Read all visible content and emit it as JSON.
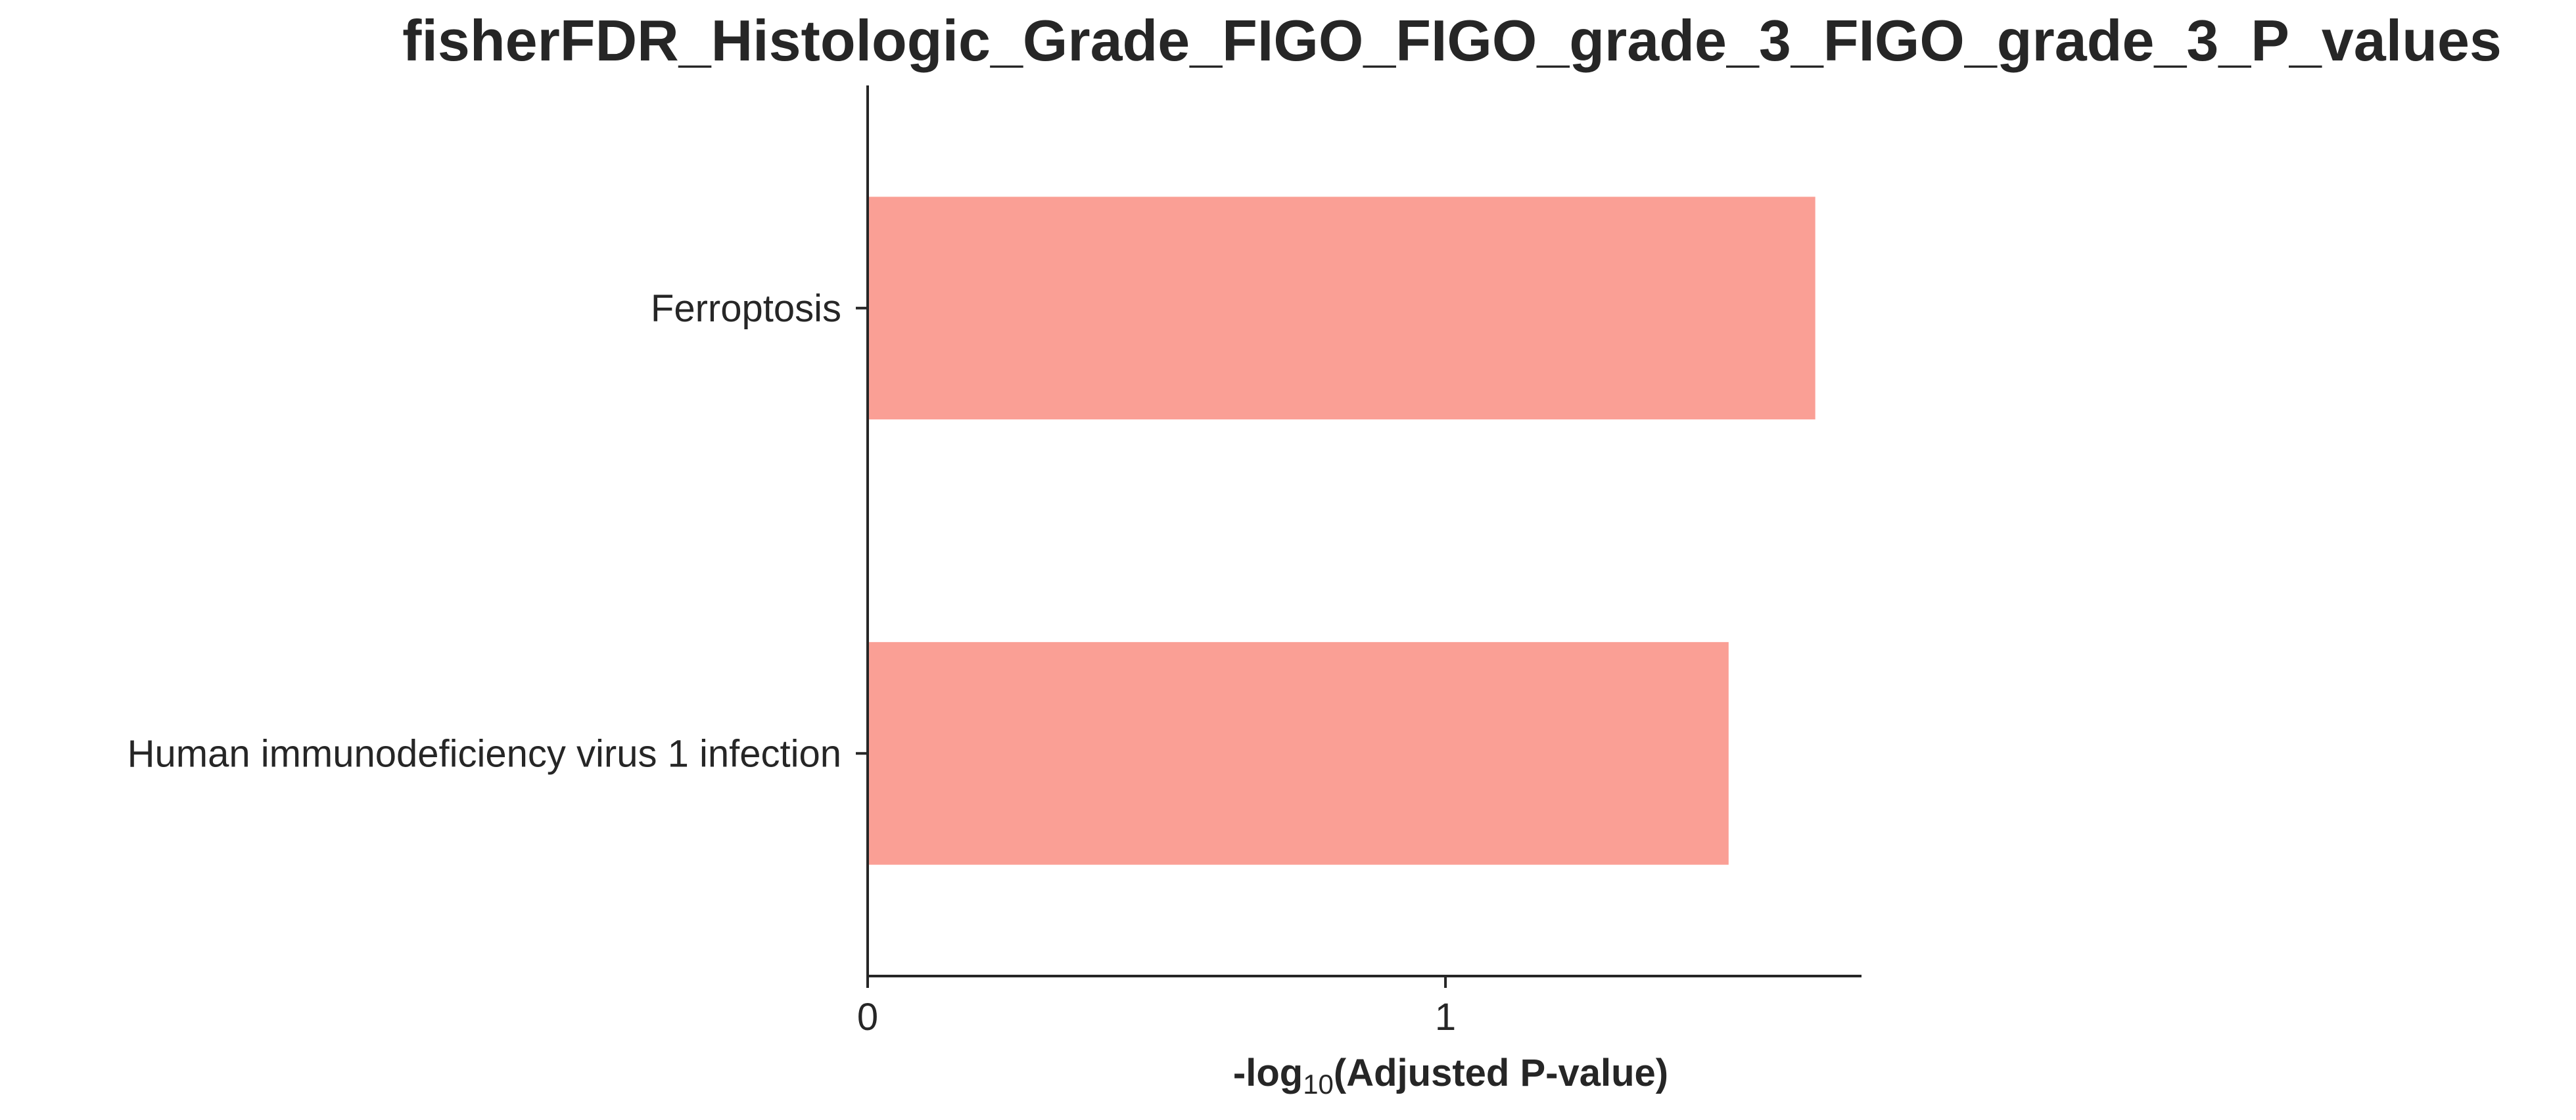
{
  "chart_data": {
    "type": "bar",
    "orientation": "horizontal",
    "title": "fisherFDR_Histologic_Grade_FIGO_FIGO_grade_3_FIGO_grade_3_P_values",
    "xlabel_prefix": "-log",
    "xlabel_subscript": "10",
    "xlabel_suffix": "(Adjusted P-value)",
    "ylabel": "",
    "categories": [
      "Ferroptosis",
      "Human immunodeficiency virus 1 infection"
    ],
    "values": [
      1.64,
      1.49
    ],
    "xlim": [
      0,
      1.72
    ],
    "xticks": [
      0,
      1
    ],
    "xtick_labels": [
      "0",
      "1"
    ],
    "bar_color": "#fa9f95",
    "axis_color": "#262626",
    "text_color": "#262626",
    "grid": false,
    "legend": "none"
  }
}
